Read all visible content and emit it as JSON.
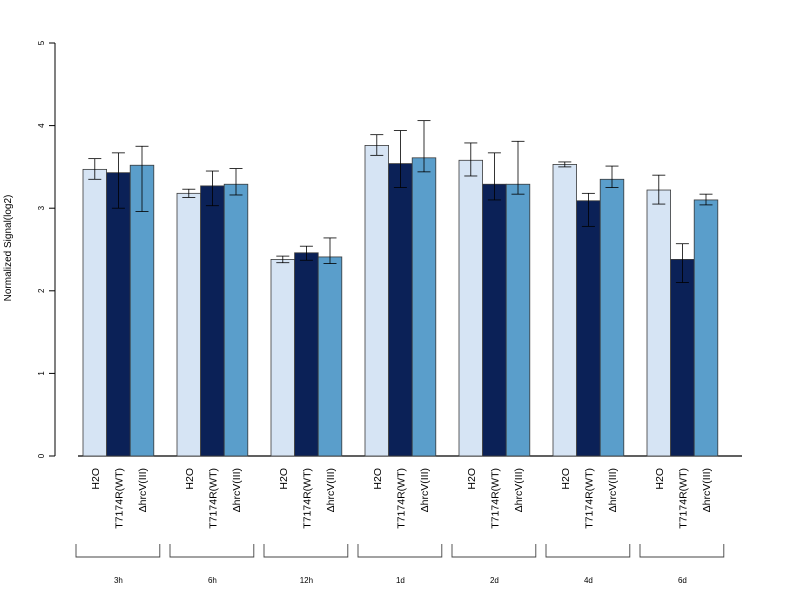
{
  "chart_data": {
    "type": "bar",
    "ylabel": "Normalized Signal(log2)",
    "xlabel": "",
    "ylim": [
      0,
      5
    ],
    "yticks": [
      0,
      1,
      2,
      3,
      4,
      5
    ],
    "category_labels": [
      "H2O",
      "T7174R(WT)",
      "ΔhrcV(III)"
    ],
    "groups": [
      "3h",
      "6h",
      "12h",
      "1d",
      "2d",
      "4d",
      "6d"
    ],
    "series": [
      {
        "name": "H2O",
        "color": "#d6e4f4",
        "values": [
          3.47,
          3.18,
          2.38,
          3.76,
          3.58,
          3.53,
          3.22
        ],
        "err_low": [
          3.35,
          3.13,
          2.34,
          3.64,
          3.39,
          3.5,
          3.05
        ],
        "err_high": [
          3.6,
          3.23,
          2.42,
          3.89,
          3.79,
          3.56,
          3.4
        ]
      },
      {
        "name": "T7174R(WT)",
        "color": "#0b2157",
        "values": [
          3.43,
          3.27,
          2.46,
          3.54,
          3.29,
          3.09,
          2.38
        ],
        "err_low": [
          3.0,
          3.03,
          2.37,
          3.25,
          3.1,
          2.78,
          2.1
        ],
        "err_high": [
          3.67,
          3.45,
          2.54,
          3.94,
          3.67,
          3.18,
          2.57
        ]
      },
      {
        "name": "ΔhrcV(III)",
        "color": "#5a9ecb",
        "values": [
          3.52,
          3.29,
          2.41,
          3.61,
          3.29,
          3.35,
          3.1
        ],
        "err_low": [
          2.96,
          3.16,
          2.33,
          3.44,
          3.17,
          3.25,
          3.04
        ],
        "err_high": [
          3.75,
          3.48,
          2.64,
          4.06,
          3.81,
          3.51,
          3.17
        ]
      }
    ]
  }
}
